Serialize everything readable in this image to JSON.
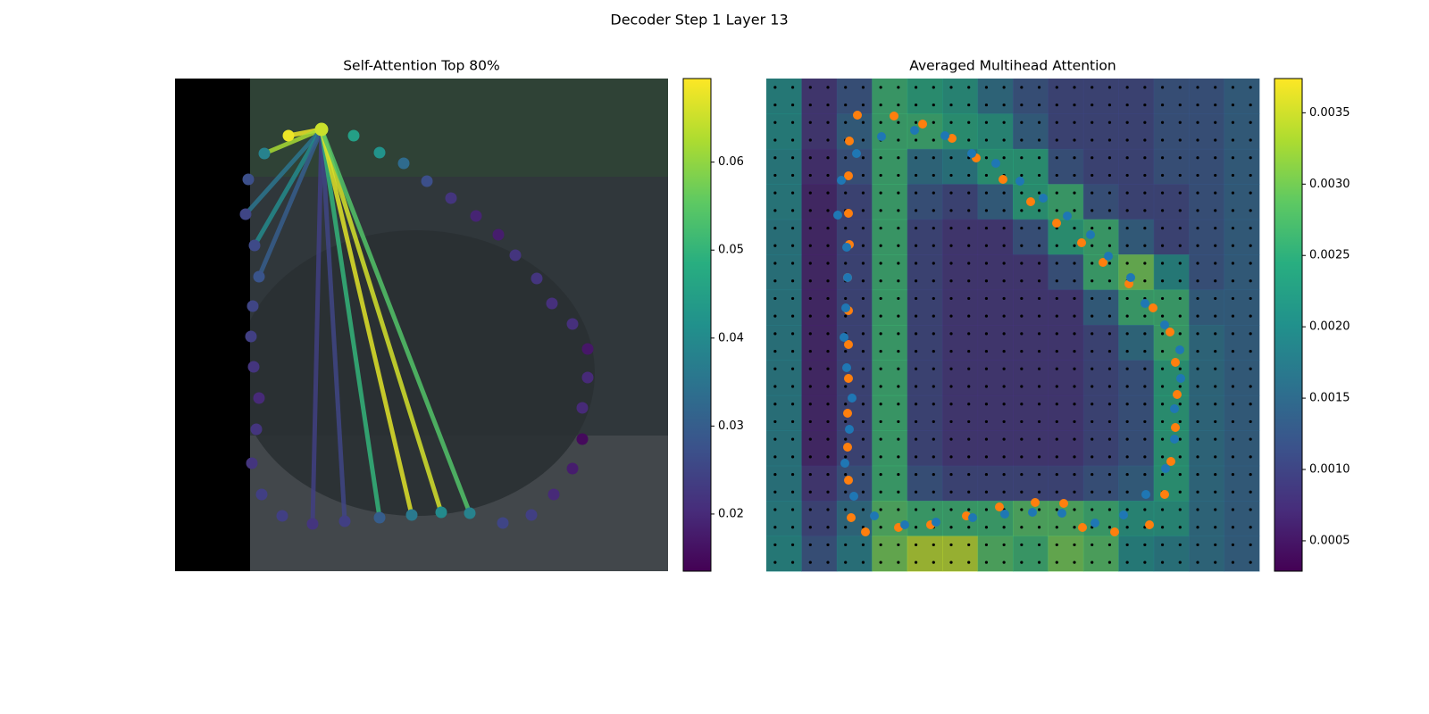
{
  "figure_title": "Decoder Step 1 Layer 13",
  "chart_data": [
    {
      "type": "scatter",
      "title": "Self-Attention Top 80%",
      "cmap": "viridis",
      "clim": [
        0.0135,
        0.0695
      ],
      "cticks": [
        0.02,
        0.03,
        0.04,
        0.05,
        0.06
      ],
      "xlim": [
        0,
        552
      ],
      "ylim": [
        552,
        0
      ],
      "x": [
        127,
        164,
        200,
        229,
        256,
        282,
        309,
        337,
        362,
        381,
        405,
        422,
        445,
        462,
        462,
        456,
        456,
        445,
        424,
        399,
        367,
        330,
        298,
        265,
        229,
        190,
        154,
        120,
        97,
        86,
        91,
        94,
        88,
        85,
        87,
        94,
        89,
        79,
        82,
        100
      ],
      "y": [
        64,
        57,
        64,
        83,
        95,
        115,
        134,
        154,
        175,
        198,
        224,
        252,
        275,
        303,
        335,
        369,
        404,
        437,
        466,
        489,
        498,
        487,
        486,
        489,
        492,
        496,
        499,
        490,
        466,
        431,
        393,
        358,
        323,
        289,
        255,
        222,
        187,
        152,
        113,
        84
      ],
      "values": [
        0.068,
        0.065,
        0.045,
        0.042,
        0.033,
        0.027,
        0.022,
        0.019,
        0.018,
        0.022,
        0.022,
        0.021,
        0.021,
        0.017,
        0.02,
        0.02,
        0.015,
        0.018,
        0.02,
        0.024,
        0.025,
        0.038,
        0.04,
        0.036,
        0.03,
        0.024,
        0.022,
        0.024,
        0.024,
        0.022,
        0.022,
        0.02,
        0.022,
        0.024,
        0.025,
        0.028,
        0.026,
        0.025,
        0.027,
        0.038
      ],
      "edges": {
        "source": 1,
        "targets": [
          0,
          39,
          37,
          36,
          35,
          26,
          25,
          24,
          23,
          22,
          21
        ],
        "values": [
          0.068,
          0.062,
          0.035,
          0.04,
          0.03,
          0.024,
          0.025,
          0.05,
          0.067,
          0.066,
          0.054
        ]
      }
    },
    {
      "type": "heatmap",
      "title": "Averaged Multihead Attention",
      "cmap": "viridis",
      "clim": [
        0.000287,
        0.00374
      ],
      "cticks": [
        0.0005,
        {
          "value": 0.001,
          "label": "0.0010"
        },
        0.0015,
        {
          "value": 0.002,
          "label": "0.0020"
        },
        0.0025,
        {
          "value": 0.003,
          "label": "0.0030"
        },
        0.0035
      ],
      "xlim": [
        0,
        552
      ],
      "ylim": [
        552,
        0
      ],
      "z": [
        [
          0.002,
          0.0008,
          0.0012,
          0.0026,
          0.0024,
          0.0022,
          0.0016,
          0.0012,
          0.001,
          0.001,
          0.001,
          0.0012,
          0.0012,
          0.0014
        ],
        [
          0.002,
          0.0008,
          0.0014,
          0.0026,
          0.0026,
          0.0024,
          0.0022,
          0.0014,
          0.001,
          0.001,
          0.001,
          0.0012,
          0.0012,
          0.0014
        ],
        [
          0.0019,
          0.0007,
          0.0012,
          0.0026,
          0.0016,
          0.0018,
          0.0024,
          0.0024,
          0.0012,
          0.001,
          0.001,
          0.0012,
          0.0012,
          0.0014
        ],
        [
          0.0019,
          0.0006,
          0.001,
          0.0026,
          0.0012,
          0.001,
          0.0014,
          0.0024,
          0.0026,
          0.0012,
          0.001,
          0.001,
          0.0012,
          0.0014
        ],
        [
          0.0018,
          0.0006,
          0.001,
          0.0026,
          0.001,
          0.0008,
          0.0008,
          0.0012,
          0.0024,
          0.0026,
          0.0014,
          0.001,
          0.0012,
          0.0014
        ],
        [
          0.0018,
          0.0006,
          0.001,
          0.0026,
          0.001,
          0.0008,
          0.0008,
          0.0008,
          0.0012,
          0.0026,
          0.003,
          0.002,
          0.0012,
          0.0014
        ],
        [
          0.0018,
          0.0006,
          0.001,
          0.0026,
          0.001,
          0.0008,
          0.0008,
          0.0008,
          0.0008,
          0.0014,
          0.0026,
          0.0026,
          0.0014,
          0.0014
        ],
        [
          0.0018,
          0.0006,
          0.001,
          0.0026,
          0.001,
          0.0008,
          0.0008,
          0.0008,
          0.0008,
          0.001,
          0.0016,
          0.0026,
          0.0016,
          0.0014
        ],
        [
          0.0018,
          0.0006,
          0.001,
          0.0026,
          0.001,
          0.0008,
          0.0008,
          0.0008,
          0.0008,
          0.001,
          0.0012,
          0.0024,
          0.0016,
          0.0014
        ],
        [
          0.0018,
          0.0006,
          0.001,
          0.0026,
          0.001,
          0.0008,
          0.0008,
          0.0008,
          0.0008,
          0.001,
          0.0012,
          0.0024,
          0.0016,
          0.0014
        ],
        [
          0.0018,
          0.0006,
          0.001,
          0.0026,
          0.001,
          0.0008,
          0.0008,
          0.0008,
          0.0008,
          0.001,
          0.0012,
          0.0024,
          0.0016,
          0.0014
        ],
        [
          0.0018,
          0.0008,
          0.0012,
          0.0026,
          0.0012,
          0.001,
          0.001,
          0.001,
          0.001,
          0.0012,
          0.0014,
          0.0024,
          0.0016,
          0.0014
        ],
        [
          0.0019,
          0.001,
          0.0016,
          0.0028,
          0.0026,
          0.0026,
          0.0026,
          0.0028,
          0.0028,
          0.0026,
          0.0022,
          0.0022,
          0.0016,
          0.0014
        ],
        [
          0.002,
          0.0012,
          0.0018,
          0.003,
          0.0034,
          0.0034,
          0.0028,
          0.0026,
          0.003,
          0.0028,
          0.002,
          0.0018,
          0.0016,
          0.0014
        ]
      ],
      "series": [
        {
          "color": "#ff7f0e",
          "x": [
            102,
            143,
            175,
            208,
            235,
            265,
            296,
            325,
            353,
            377,
            406,
            433,
            452,
            458,
            460,
            458,
            453,
            446,
            429,
            390,
            354,
            333,
            301,
            261,
            224,
            184,
            148,
            111,
            95,
            92,
            91,
            91,
            92,
            92,
            92,
            91,
            93,
            92,
            92,
            93
          ],
          "y": [
            41,
            42,
            51,
            67,
            89,
            113,
            138,
            162,
            184,
            206,
            230,
            257,
            284,
            318,
            354,
            391,
            429,
            466,
            500,
            508,
            503,
            476,
            475,
            480,
            490,
            500,
            503,
            508,
            492,
            450,
            413,
            375,
            336,
            298,
            260,
            223,
            186,
            151,
            109,
            70
          ]
        },
        {
          "color": "#1f77b4",
          "x": [
            101,
            129,
            166,
            200,
            230,
            257,
            284,
            310,
            337,
            363,
            383,
            408,
            424,
            446,
            463,
            464,
            457,
            457,
            447,
            425,
            400,
            368,
            331,
            298,
            267,
            231,
            190,
            155,
            121,
            98,
            88,
            93,
            96,
            90,
            87,
            89,
            91,
            90,
            80,
            84
          ],
          "y": [
            84,
            65,
            58,
            64,
            84,
            95,
            115,
            134,
            154,
            175,
            199,
            223,
            252,
            276,
            304,
            336,
            370,
            404,
            437,
            466,
            489,
            498,
            487,
            486,
            488,
            492,
            497,
            500,
            490,
            468,
            431,
            393,
            358,
            324,
            290,
            257,
            223,
            189,
            153,
            114
          ]
        }
      ]
    }
  ]
}
